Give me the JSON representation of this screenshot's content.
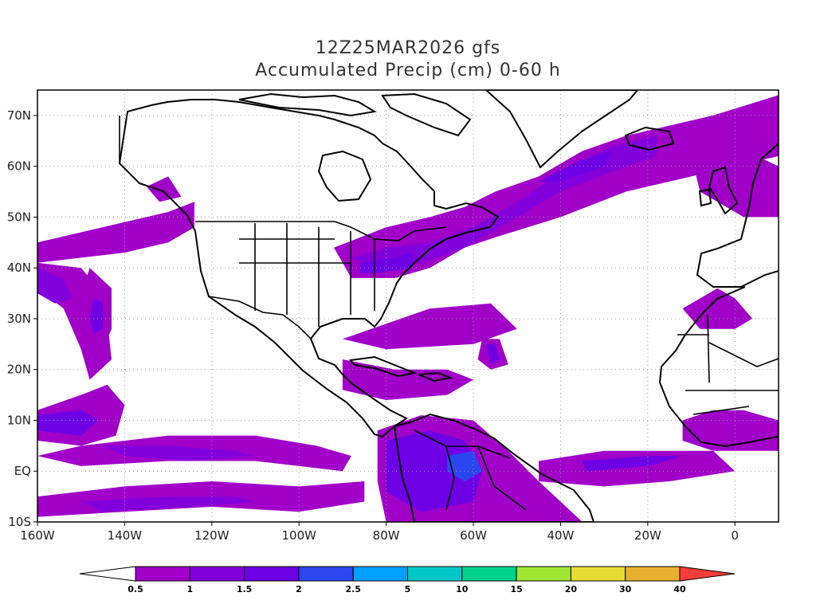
{
  "header": {
    "line1": "12Z25MAR2026 gfs",
    "line2": "Accumulated Precip (cm) 0-60 h"
  },
  "map": {
    "projection": "lat-lon",
    "lon_range": [
      -160,
      10
    ],
    "lat_range": [
      -10,
      75
    ],
    "lat_labels": [
      {
        "lat": 70,
        "text": "70N"
      },
      {
        "lat": 60,
        "text": "60N"
      },
      {
        "lat": 50,
        "text": "50N"
      },
      {
        "lat": 40,
        "text": "40N"
      },
      {
        "lat": 30,
        "text": "30N"
      },
      {
        "lat": 20,
        "text": "20N"
      },
      {
        "lat": 10,
        "text": "10N"
      },
      {
        "lat": 0,
        "text": "EQ"
      },
      {
        "lat": -10,
        "text": "10S"
      }
    ],
    "lon_labels": [
      {
        "lon": -160,
        "text": "160W"
      },
      {
        "lon": -140,
        "text": "140W"
      },
      {
        "lon": -120,
        "text": "120W"
      },
      {
        "lon": -100,
        "text": "100W"
      },
      {
        "lon": -80,
        "text": "80W"
      },
      {
        "lon": -60,
        "text": "60W"
      },
      {
        "lon": -40,
        "text": "40W"
      },
      {
        "lon": -20,
        "text": "20W"
      },
      {
        "lon": 0,
        "text": "0"
      }
    ],
    "grid": "dotted",
    "precip_regions": [
      {
        "level": 0,
        "poly": [
          [
            -160,
            45
          ],
          [
            -150,
            47
          ],
          [
            -140,
            49
          ],
          [
            -130,
            51
          ],
          [
            -124,
            53
          ],
          [
            -124,
            48
          ],
          [
            -130,
            45
          ],
          [
            -140,
            43
          ],
          [
            -150,
            42
          ],
          [
            -160,
            41
          ]
        ]
      },
      {
        "level": 0,
        "poly": [
          [
            -160,
            41
          ],
          [
            -150,
            40
          ],
          [
            -146,
            36
          ],
          [
            -144,
            30
          ],
          [
            -143,
            22
          ],
          [
            -148,
            18
          ],
          [
            -150,
            24
          ],
          [
            -154,
            32
          ],
          [
            -160,
            36
          ]
        ]
      },
      {
        "level": 1,
        "poly": [
          [
            -160,
            40
          ],
          [
            -154,
            38
          ],
          [
            -152,
            34
          ],
          [
            -156,
            33
          ],
          [
            -160,
            35
          ]
        ]
      },
      {
        "level": 0,
        "poly": [
          [
            -148,
            40
          ],
          [
            -143,
            36
          ],
          [
            -143,
            28
          ],
          [
            -146,
            22
          ],
          [
            -150,
            24
          ],
          [
            -151,
            32
          ]
        ]
      },
      {
        "level": 2,
        "poly": [
          [
            -147,
            34
          ],
          [
            -145,
            33
          ],
          [
            -145,
            28
          ],
          [
            -147,
            27
          ],
          [
            -148,
            30
          ]
        ]
      },
      {
        "level": 0,
        "poly": [
          [
            -160,
            12
          ],
          [
            -150,
            15
          ],
          [
            -144,
            17
          ],
          [
            -140,
            13
          ],
          [
            -142,
            7
          ],
          [
            -150,
            5
          ],
          [
            -160,
            6
          ]
        ]
      },
      {
        "level": 2,
        "poly": [
          [
            -160,
            11
          ],
          [
            -150,
            12
          ],
          [
            -146,
            10
          ],
          [
            -150,
            7
          ],
          [
            -160,
            8
          ]
        ]
      },
      {
        "level": 0,
        "poly": [
          [
            -150,
            5
          ],
          [
            -130,
            7
          ],
          [
            -110,
            7
          ],
          [
            -96,
            5
          ],
          [
            -88,
            3
          ],
          [
            -90,
            0
          ],
          [
            -110,
            2
          ],
          [
            -130,
            2
          ],
          [
            -150,
            1
          ],
          [
            -160,
            3
          ]
        ]
      },
      {
        "level": 1,
        "poly": [
          [
            -145,
            5
          ],
          [
            -130,
            5
          ],
          [
            -115,
            4
          ],
          [
            -110,
            3
          ],
          [
            -125,
            2
          ],
          [
            -140,
            3
          ]
        ]
      },
      {
        "level": 0,
        "poly": [
          [
            -160,
            -5
          ],
          [
            -140,
            -3
          ],
          [
            -120,
            -2
          ],
          [
            -100,
            -3
          ],
          [
            -85,
            -2
          ],
          [
            -85,
            -6
          ],
          [
            -100,
            -8
          ],
          [
            -120,
            -7
          ],
          [
            -140,
            -8
          ],
          [
            -160,
            -9
          ]
        ]
      },
      {
        "level": 1,
        "poly": [
          [
            -150,
            -6
          ],
          [
            -130,
            -5
          ],
          [
            -115,
            -5
          ],
          [
            -110,
            -6
          ],
          [
            -125,
            -7
          ],
          [
            -145,
            -8
          ]
        ]
      },
      {
        "level": 0,
        "poly": [
          [
            -92,
            44
          ],
          [
            -80,
            48
          ],
          [
            -70,
            50
          ],
          [
            -62,
            52
          ],
          [
            -55,
            55
          ],
          [
            -45,
            58
          ],
          [
            -35,
            63
          ],
          [
            -25,
            66
          ],
          [
            -15,
            68
          ],
          [
            -5,
            70
          ],
          [
            10,
            74
          ],
          [
            10,
            62
          ],
          [
            0,
            60
          ],
          [
            -10,
            58
          ],
          [
            -25,
            55
          ],
          [
            -40,
            50
          ],
          [
            -55,
            46
          ],
          [
            -62,
            44
          ],
          [
            -70,
            40
          ],
          [
            -78,
            38
          ],
          [
            -88,
            38
          ]
        ]
      },
      {
        "level": 1,
        "poly": [
          [
            -88,
            42
          ],
          [
            -80,
            44
          ],
          [
            -70,
            45
          ],
          [
            -60,
            48
          ],
          [
            -48,
            54
          ],
          [
            -38,
            60
          ],
          [
            -28,
            64
          ],
          [
            -18,
            66
          ],
          [
            -18,
            62
          ],
          [
            -28,
            59
          ],
          [
            -40,
            55
          ],
          [
            -52,
            49
          ],
          [
            -62,
            44
          ],
          [
            -72,
            41
          ],
          [
            -82,
            40
          ]
        ]
      },
      {
        "level": 2,
        "poly": [
          [
            -86,
            41
          ],
          [
            -78,
            42
          ],
          [
            -74,
            43
          ],
          [
            -74,
            40
          ],
          [
            -82,
            39
          ],
          [
            -86,
            39
          ]
        ]
      },
      {
        "level": 2,
        "poly": [
          [
            -45,
            57
          ],
          [
            -36,
            61
          ],
          [
            -28,
            63
          ],
          [
            -30,
            60
          ],
          [
            -40,
            57
          ]
        ]
      },
      {
        "level": 0,
        "poly": [
          [
            -10,
            62
          ],
          [
            5,
            62
          ],
          [
            10,
            60
          ],
          [
            10,
            50
          ],
          [
            2,
            50
          ],
          [
            -8,
            55
          ]
        ]
      },
      {
        "level": 0,
        "poly": [
          [
            -90,
            26
          ],
          [
            -70,
            32
          ],
          [
            -56,
            33
          ],
          [
            -50,
            28
          ],
          [
            -60,
            25
          ],
          [
            -80,
            24
          ]
        ]
      },
      {
        "level": 0,
        "poly": [
          [
            -58,
            26
          ],
          [
            -54,
            26
          ],
          [
            -52,
            21
          ],
          [
            -56,
            20
          ],
          [
            -59,
            22
          ]
        ]
      },
      {
        "level": 2,
        "poly": [
          [
            -57,
            25
          ],
          [
            -55,
            25
          ],
          [
            -54,
            22
          ],
          [
            -56,
            21
          ]
        ]
      },
      {
        "level": 0,
        "poly": [
          [
            -90,
            22
          ],
          [
            -78,
            20
          ],
          [
            -66,
            20
          ],
          [
            -60,
            18
          ],
          [
            -66,
            15
          ],
          [
            -80,
            14
          ],
          [
            -90,
            16
          ]
        ]
      },
      {
        "level": 0,
        "poly": [
          [
            -82,
            8
          ],
          [
            -72,
            11
          ],
          [
            -60,
            10
          ],
          [
            -52,
            4
          ],
          [
            -45,
            -2
          ],
          [
            -35,
            -10
          ],
          [
            -80,
            -10
          ],
          [
            -82,
            -2
          ]
        ]
      },
      {
        "level": 2,
        "poly": [
          [
            -80,
            6
          ],
          [
            -70,
            8
          ],
          [
            -62,
            6
          ],
          [
            -58,
            0
          ],
          [
            -60,
            -6
          ],
          [
            -72,
            -8
          ],
          [
            -80,
            -4
          ]
        ]
      },
      {
        "level": 3,
        "poly": [
          [
            -66,
            3
          ],
          [
            -60,
            4
          ],
          [
            -58,
            0
          ],
          [
            -62,
            -2
          ],
          [
            -66,
            0
          ]
        ]
      },
      {
        "level": 0,
        "poly": [
          [
            -45,
            2
          ],
          [
            -30,
            4
          ],
          [
            -15,
            4
          ],
          [
            -5,
            4
          ],
          [
            0,
            0
          ],
          [
            -15,
            -2
          ],
          [
            -30,
            -3
          ],
          [
            -45,
            -2
          ]
        ]
      },
      {
        "level": 2,
        "poly": [
          [
            -35,
            2
          ],
          [
            -20,
            3
          ],
          [
            -12,
            3
          ],
          [
            -20,
            1
          ],
          [
            -34,
            0
          ]
        ]
      },
      {
        "level": 0,
        "poly": [
          [
            -12,
            32
          ],
          [
            -4,
            36
          ],
          [
            0,
            34
          ],
          [
            4,
            30
          ],
          [
            0,
            28
          ],
          [
            -8,
            28
          ]
        ]
      },
      {
        "level": 0,
        "poly": [
          [
            -12,
            10
          ],
          [
            -5,
            12
          ],
          [
            2,
            12
          ],
          [
            10,
            10
          ],
          [
            10,
            4
          ],
          [
            -5,
            4
          ],
          [
            -12,
            6
          ]
        ]
      },
      {
        "level": 0,
        "poly": [
          [
            -135,
            56
          ],
          [
            -130,
            58
          ],
          [
            -127,
            54
          ],
          [
            -132,
            53
          ]
        ]
      }
    ],
    "colorbar": {
      "labels": [
        "0.5",
        "1",
        "1.5",
        "2",
        "2.5",
        "5",
        "10",
        "15",
        "20",
        "30",
        "40"
      ],
      "colors": [
        "#a000c8",
        "#8200dc",
        "#6e00e6",
        "#2a46f0",
        "#00a0ff",
        "#00c8c8",
        "#00d28c",
        "#a0e632",
        "#e6dc32",
        "#e6af2d",
        "#f08228",
        "#fa3c3c"
      ]
    }
  }
}
